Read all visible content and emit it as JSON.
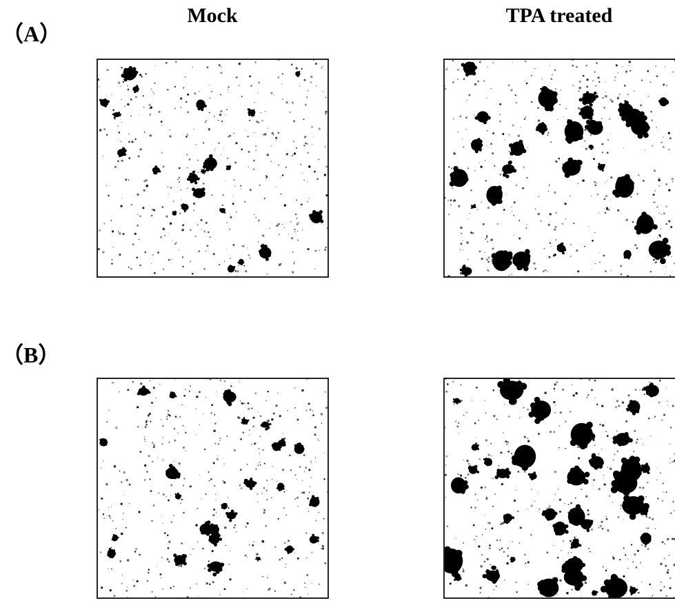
{
  "columns": [
    "Mock",
    "TPA treated"
  ],
  "rows": [
    "（A）",
    "（B）"
  ]
}
